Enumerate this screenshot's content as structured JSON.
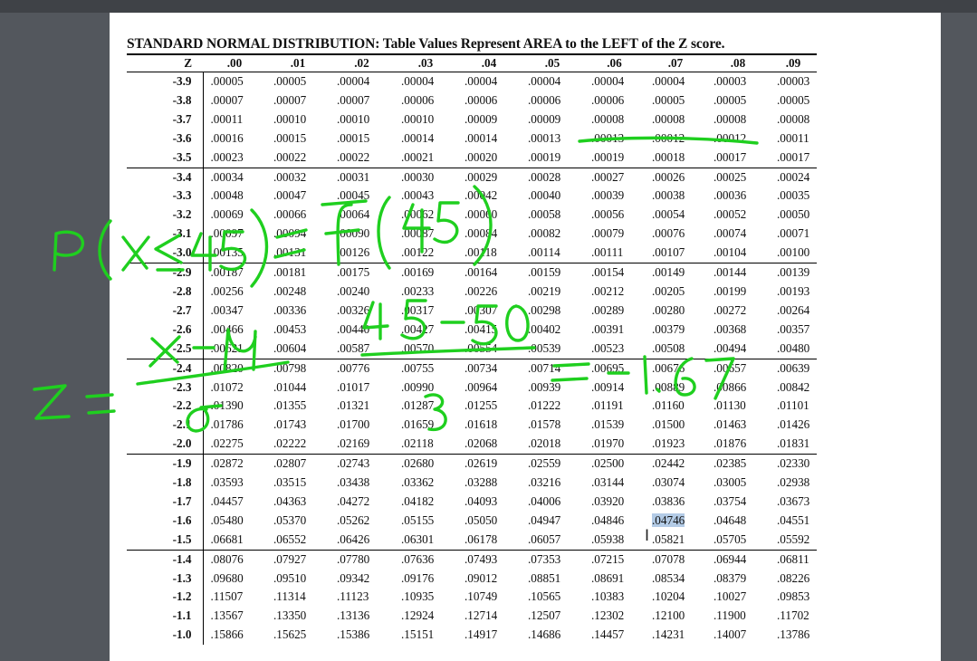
{
  "title": "STANDARD NORMAL DISTRIBUTION: Table Values Represent AREA to the LEFT of the Z score.",
  "columns": [
    "Z",
    ".00",
    ".01",
    ".02",
    ".03",
    ".04",
    ".05",
    ".06",
    ".07",
    ".08",
    ".09"
  ],
  "rows": [
    {
      "z": "-3.9",
      "values": [
        ".00005",
        ".00005",
        ".00004",
        ".00004",
        ".00004",
        ".00004",
        ".00004",
        ".00004",
        ".00003",
        ".00003"
      ]
    },
    {
      "z": "-3.8",
      "values": [
        ".00007",
        ".00007",
        ".00007",
        ".00006",
        ".00006",
        ".00006",
        ".00006",
        ".00005",
        ".00005",
        ".00005"
      ]
    },
    {
      "z": "-3.7",
      "values": [
        ".00011",
        ".00010",
        ".00010",
        ".00010",
        ".00009",
        ".00009",
        ".00008",
        ".00008",
        ".00008",
        ".00008"
      ]
    },
    {
      "z": "-3.6",
      "values": [
        ".00016",
        ".00015",
        ".00015",
        ".00014",
        ".00014",
        ".00013",
        ".00013",
        ".00012",
        ".00012",
        ".00011"
      ]
    },
    {
      "z": "-3.5",
      "values": [
        ".00023",
        ".00022",
        ".00022",
        ".00021",
        ".00020",
        ".00019",
        ".00019",
        ".00018",
        ".00017",
        ".00017"
      ]
    },
    {
      "z": "-3.4",
      "values": [
        ".00034",
        ".00032",
        ".00031",
        ".00030",
        ".00029",
        ".00028",
        ".00027",
        ".00026",
        ".00025",
        ".00024"
      ]
    },
    {
      "z": "-3.3",
      "values": [
        ".00048",
        ".00047",
        ".00045",
        ".00043",
        ".00042",
        ".00040",
        ".00039",
        ".00038",
        ".00036",
        ".00035"
      ]
    },
    {
      "z": "-3.2",
      "values": [
        ".00069",
        ".00066",
        ".00064",
        ".00062",
        ".00060",
        ".00058",
        ".00056",
        ".00054",
        ".00052",
        ".00050"
      ]
    },
    {
      "z": "-3.1",
      "values": [
        ".00097",
        ".00094",
        ".00090",
        ".00087",
        ".00084",
        ".00082",
        ".00079",
        ".00076",
        ".00074",
        ".00071"
      ]
    },
    {
      "z": "-3.0",
      "values": [
        ".00135",
        ".00131",
        ".00126",
        ".00122",
        ".00118",
        ".00114",
        ".00111",
        ".00107",
        ".00104",
        ".00100"
      ]
    },
    {
      "z": "-2.9",
      "values": [
        ".00187",
        ".00181",
        ".00175",
        ".00169",
        ".00164",
        ".00159",
        ".00154",
        ".00149",
        ".00144",
        ".00139"
      ]
    },
    {
      "z": "-2.8",
      "values": [
        ".00256",
        ".00248",
        ".00240",
        ".00233",
        ".00226",
        ".00219",
        ".00212",
        ".00205",
        ".00199",
        ".00193"
      ]
    },
    {
      "z": "-2.7",
      "values": [
        ".00347",
        ".00336",
        ".00326",
        ".00317",
        ".00307",
        ".00298",
        ".00289",
        ".00280",
        ".00272",
        ".00264"
      ]
    },
    {
      "z": "-2.6",
      "values": [
        ".00466",
        ".00453",
        ".00440",
        ".00427",
        ".00415",
        ".00402",
        ".00391",
        ".00379",
        ".00368",
        ".00357"
      ]
    },
    {
      "z": "-2.5",
      "values": [
        ".00621",
        ".00604",
        ".00587",
        ".00570",
        ".00554",
        ".00539",
        ".00523",
        ".00508",
        ".00494",
        ".00480"
      ]
    },
    {
      "z": "-2.4",
      "values": [
        ".00820",
        ".00798",
        ".00776",
        ".00755",
        ".00734",
        ".00714",
        ".00695",
        ".00676",
        ".00657",
        ".00639"
      ]
    },
    {
      "z": "-2.3",
      "values": [
        ".01072",
        ".01044",
        ".01017",
        ".00990",
        ".00964",
        ".00939",
        ".00914",
        ".00889",
        ".00866",
        ".00842"
      ]
    },
    {
      "z": "-2.2",
      "values": [
        ".01390",
        ".01355",
        ".01321",
        ".01287",
        ".01255",
        ".01222",
        ".01191",
        ".01160",
        ".01130",
        ".01101"
      ]
    },
    {
      "z": "-2.1",
      "values": [
        ".01786",
        ".01743",
        ".01700",
        ".01659",
        ".01618",
        ".01578",
        ".01539",
        ".01500",
        ".01463",
        ".01426"
      ]
    },
    {
      "z": "-2.0",
      "values": [
        ".02275",
        ".02222",
        ".02169",
        ".02118",
        ".02068",
        ".02018",
        ".01970",
        ".01923",
        ".01876",
        ".01831"
      ]
    },
    {
      "z": "-1.9",
      "values": [
        ".02872",
        ".02807",
        ".02743",
        ".02680",
        ".02619",
        ".02559",
        ".02500",
        ".02442",
        ".02385",
        ".02330"
      ]
    },
    {
      "z": "-1.8",
      "values": [
        ".03593",
        ".03515",
        ".03438",
        ".03362",
        ".03288",
        ".03216",
        ".03144",
        ".03074",
        ".03005",
        ".02938"
      ]
    },
    {
      "z": "-1.7",
      "values": [
        ".04457",
        ".04363",
        ".04272",
        ".04182",
        ".04093",
        ".04006",
        ".03920",
        ".03836",
        ".03754",
        ".03673"
      ]
    },
    {
      "z": "-1.6",
      "values": [
        ".05480",
        ".05370",
        ".05262",
        ".05155",
        ".05050",
        ".04947",
        ".04846",
        ".04746",
        ".04648",
        ".04551"
      ]
    },
    {
      "z": "-1.5",
      "values": [
        ".06681",
        ".06552",
        ".06426",
        ".06301",
        ".06178",
        ".06057",
        ".05938",
        ".05821",
        ".05705",
        ".05592"
      ]
    },
    {
      "z": "-1.4",
      "values": [
        ".08076",
        ".07927",
        ".07780",
        ".07636",
        ".07493",
        ".07353",
        ".07215",
        ".07078",
        ".06944",
        ".06811"
      ]
    },
    {
      "z": "-1.3",
      "values": [
        ".09680",
        ".09510",
        ".09342",
        ".09176",
        ".09012",
        ".08851",
        ".08691",
        ".08534",
        ".08379",
        ".08226"
      ]
    },
    {
      "z": "-1.2",
      "values": [
        ".11507",
        ".11314",
        ".11123",
        ".10935",
        ".10749",
        ".10565",
        ".10383",
        ".10204",
        ".10027",
        ".09853"
      ]
    },
    {
      "z": "-1.1",
      "values": [
        ".13567",
        ".13350",
        ".13136",
        ".12924",
        ".12714",
        ".12507",
        ".12302",
        ".12100",
        ".11900",
        ".11702"
      ]
    },
    {
      "z": "-1.0",
      "values": [
        ".15866",
        ".15625",
        ".15386",
        ".15151",
        ".14917",
        ".14686",
        ".14457",
        ".14231",
        ".14007",
        ".13786"
      ]
    }
  ],
  "highlight": {
    "row": 23,
    "col": 7,
    "color": "#b3cbe6"
  },
  "ink_color": "#1fcf1f",
  "cursor_icon": "text-cursor-icon"
}
